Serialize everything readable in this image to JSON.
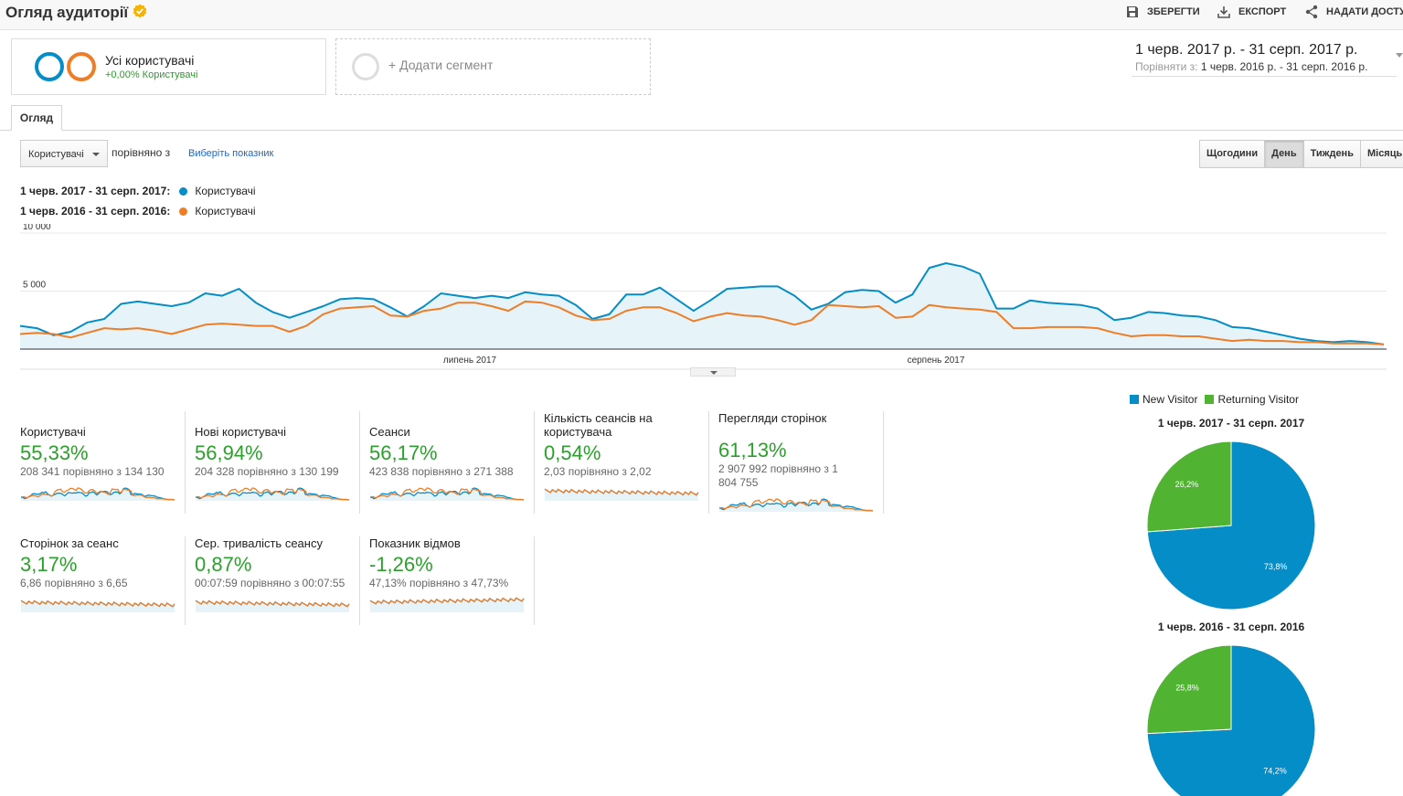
{
  "header": {
    "title": "Огляд аудиторії",
    "actions": [
      {
        "label": "ЗБЕРЕГТИ",
        "icon": "save-icon"
      },
      {
        "label": "ЕКСПОРТ",
        "icon": "download-icon"
      },
      {
        "label": "НАДАТИ ДОСТУ",
        "icon": "share-icon"
      }
    ]
  },
  "segments": {
    "all_users": {
      "name": "Усі користувачі",
      "sub": "+0,00% Користувачі"
    },
    "add_label": "+ Додати сегмент"
  },
  "date_range": {
    "main": "1 черв. 2017 р. - 31 серп. 2017 р.",
    "compare_label": "Порівняти з:",
    "compare": "1 черв. 2016 р. - 31 серп. 2016 р."
  },
  "tabs": {
    "overview": "Огляд"
  },
  "controls": {
    "metric": "Користувачі",
    "compare_text": "порівняно з",
    "choose_metric": "Виберіть показник",
    "periods": [
      "Щогодини",
      "День",
      "Тиждень",
      "Місяць"
    ],
    "active_period": "День"
  },
  "legend": [
    {
      "range": "1 черв. 2017 - 31 серп. 2017:",
      "metric": "Користувачі",
      "color": "#058dc7"
    },
    {
      "range": "1 черв. 2016 - 31 серп. 2016:",
      "metric": "Користувачі",
      "color": "#ed7e27"
    }
  ],
  "chart_data": [
    {
      "type": "line",
      "y_ticks": [
        "10 000",
        "5 000"
      ],
      "x_labels": [
        "липень 2017",
        "серпень 2017"
      ],
      "ylim": [
        0,
        10000
      ],
      "series": [
        {
          "name": "Користувачі",
          "color": "#058dc7",
          "fill": true,
          "values": [
            2000,
            1800,
            1200,
            1500,
            2300,
            2600,
            3900,
            4100,
            3900,
            3700,
            4000,
            4800,
            4600,
            5200,
            4000,
            3200,
            2700,
            3200,
            3700,
            4300,
            4400,
            4300,
            3600,
            2800,
            3700,
            4800,
            4600,
            4400,
            4600,
            4400,
            4900,
            4700,
            4600,
            3800,
            2600,
            3000,
            4700,
            4700,
            5300,
            4300,
            3300,
            4200,
            5200,
            5300,
            5400,
            5400,
            4600,
            3400,
            3900,
            4900,
            5100,
            5000,
            4000,
            4700,
            7000,
            7400,
            7100,
            6500,
            3500,
            3500,
            4200,
            4000,
            3900,
            3800,
            3500,
            2500,
            2700,
            3200,
            3100,
            2900,
            2800,
            2500,
            1900,
            1800,
            1500,
            1200,
            900,
            700,
            600,
            700,
            600,
            400
          ]
        },
        {
          "name": "Користувачі",
          "color": "#ed7e27",
          "fill": false,
          "values": [
            1300,
            1400,
            1300,
            1000,
            1400,
            1800,
            1700,
            1800,
            1600,
            1300,
            1700,
            2100,
            2200,
            2100,
            2000,
            2000,
            1500,
            2000,
            3000,
            3500,
            3600,
            3700,
            2900,
            2800,
            3300,
            3500,
            4000,
            4000,
            3700,
            3300,
            4100,
            4000,
            3600,
            2900,
            2500,
            2600,
            3300,
            3600,
            3600,
            3100,
            2400,
            2800,
            3100,
            2900,
            2800,
            2500,
            2100,
            2500,
            3800,
            3700,
            3600,
            3700,
            2700,
            2800,
            3800,
            3600,
            3500,
            3400,
            3200,
            1800,
            1800,
            1900,
            1900,
            1900,
            1800,
            1400,
            1100,
            1200,
            1200,
            1100,
            1100,
            900,
            700,
            800,
            700,
            700,
            600,
            600,
            500,
            500,
            500,
            400
          ]
        }
      ]
    },
    {
      "type": "pie",
      "title": "1 черв. 2017 - 31 серп. 2017",
      "labels": [
        "New Visitor",
        "Returning Visitor"
      ],
      "values": [
        73.8,
        26.2
      ],
      "value_labels": [
        "73,8%",
        "26,2%"
      ],
      "colors": [
        "#058dc7",
        "#50b432"
      ]
    },
    {
      "type": "pie",
      "title": "1 черв. 2016 - 31 серп. 2016",
      "labels": [
        "New Visitor",
        "Returning Visitor"
      ],
      "values": [
        74.2,
        25.8
      ],
      "value_labels": [
        "74,2%",
        "25,8%"
      ],
      "colors": [
        "#058dc7",
        "#50b432"
      ]
    }
  ],
  "pie_legend": [
    {
      "label": "New Visitor",
      "color": "#058dc7"
    },
    {
      "label": "Returning Visitor",
      "color": "#50b432"
    }
  ],
  "metrics": [
    {
      "label": "Користувачі",
      "pct": "55,33%",
      "cmp": "208 341 порівняно з 134 130"
    },
    {
      "label": "Нові користувачі",
      "pct": "56,94%",
      "cmp": "204 328 порівняно з 130 199"
    },
    {
      "label": "Сеанси",
      "pct": "56,17%",
      "cmp": "423 838 порівняно з 271 388"
    },
    {
      "label": "Кількість сеансів на користувача",
      "pct": "0,54%",
      "cmp": "2,03 порівняно з 2,02"
    },
    {
      "label": "Перегляди сторінок",
      "pct": "61,13%",
      "cmp": "2 907 992 порівняно з 1 804 755"
    },
    {
      "label": "Сторінок за сеанс",
      "pct": "3,17%",
      "cmp": "6,86 порівняно з 6,65"
    },
    {
      "label": "Сер. тривалість сеансу",
      "pct": "0,87%",
      "cmp": "00:07:59 порівняно з 00:07:55"
    },
    {
      "label": "Показник відмов",
      "pct": "-1,26%",
      "cmp": "47,13% порівняно з 47,73%"
    }
  ]
}
